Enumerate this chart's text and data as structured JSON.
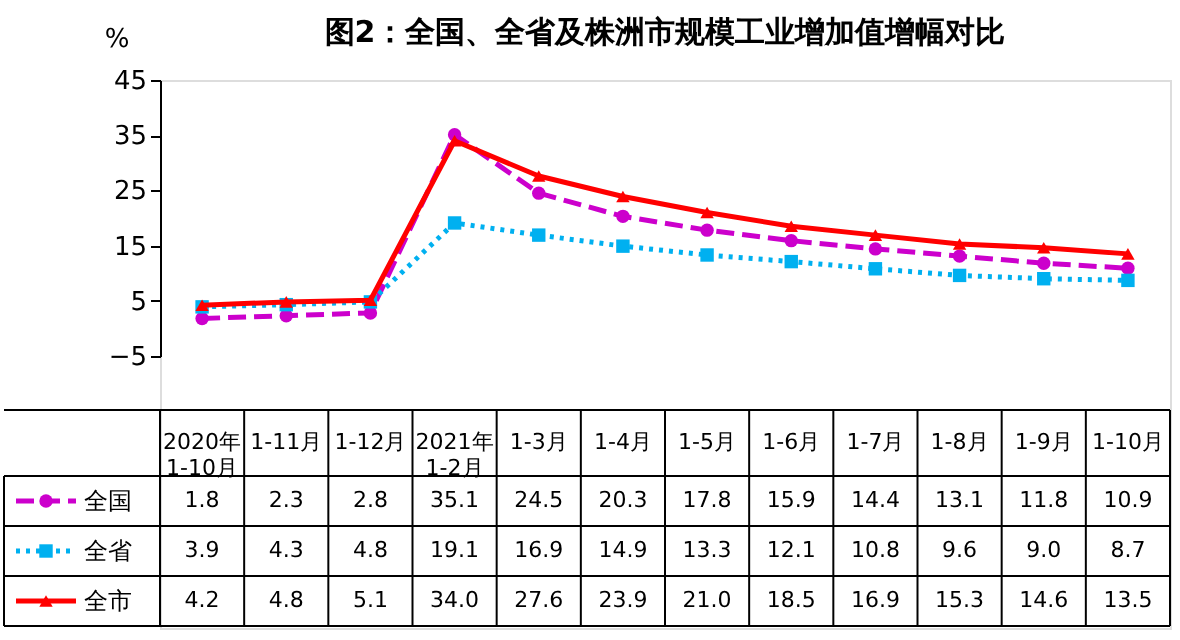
{
  "chart_data": {
    "type": "line",
    "title": "图2：全国、全省及株洲市规模工业增加值增幅对比",
    "ylabel": "%",
    "categories": [
      "2020年\n1-10月",
      "1-11月",
      "1-12月",
      "2021年\n1-2月",
      "1-3月",
      "1-4月",
      "1-5月",
      "1-6月",
      "1-7月",
      "1-8月",
      "1-9月",
      "1-10月"
    ],
    "series": [
      {
        "name": "全国",
        "color": "#cc00cc",
        "marker": "circle",
        "line_style": "dashed",
        "values": [
          1.8,
          2.3,
          2.8,
          35.1,
          24.5,
          20.3,
          17.8,
          15.9,
          14.4,
          13.1,
          11.8,
          10.9
        ],
        "value_labels": [
          "1.8",
          "2.3",
          "2.8",
          "35.1",
          "24.5",
          "20.3",
          "17.8",
          "15.9",
          "14.4",
          "13.1",
          "11.8",
          "10.9"
        ]
      },
      {
        "name": "全省",
        "color": "#00b0f0",
        "marker": "square",
        "line_style": "dotted",
        "values": [
          3.9,
          4.3,
          4.8,
          19.1,
          16.9,
          14.9,
          13.3,
          12.1,
          10.8,
          9.6,
          9.0,
          8.7
        ],
        "value_labels": [
          "3.9",
          "4.3",
          "4.8",
          "19.1",
          "16.9",
          "14.9",
          "13.3",
          "12.1",
          "10.8",
          "9.6",
          "9.0",
          "8.7"
        ]
      },
      {
        "name": "全市",
        "color": "#ff0000",
        "marker": "triangle",
        "line_style": "solid",
        "values": [
          4.2,
          4.8,
          5.1,
          34.0,
          27.6,
          23.9,
          21.0,
          18.5,
          16.9,
          15.3,
          14.6,
          13.5
        ],
        "value_labels": [
          "4.2",
          "4.8",
          "5.1",
          "34.0",
          "27.6",
          "23.9",
          "21.0",
          "18.5",
          "16.9",
          "15.3",
          "14.6",
          "13.5"
        ]
      }
    ],
    "ylim": [
      -5,
      45
    ],
    "yticks": [
      -5,
      5,
      15,
      25,
      35,
      45
    ],
    "grid": false,
    "legend": "bottom left"
  }
}
